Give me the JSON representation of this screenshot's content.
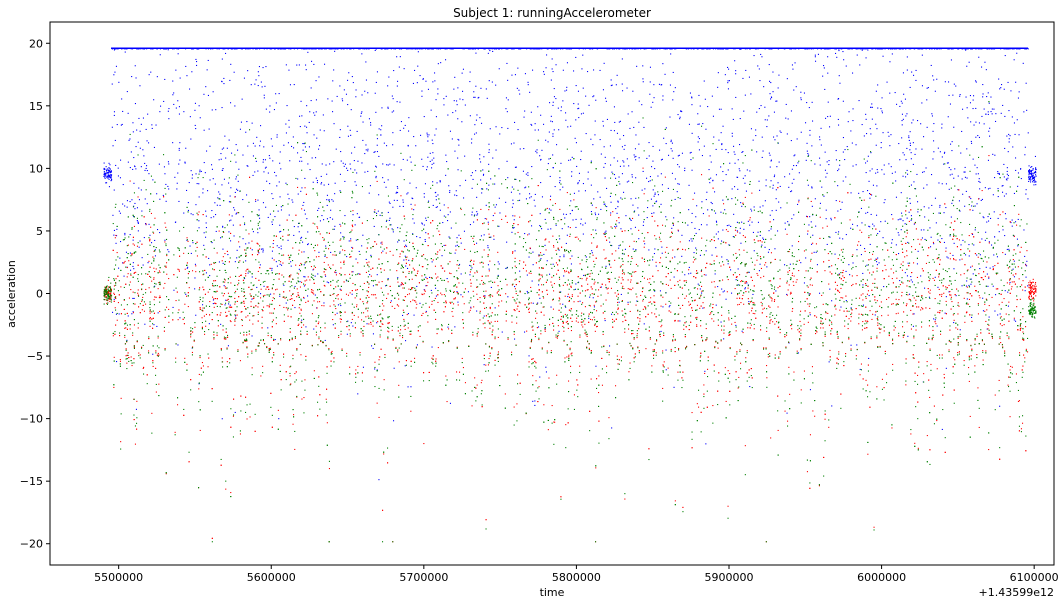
{
  "chart_data": {
    "type": "scatter",
    "title": "Subject 1: runningAccelerometer",
    "xlabel": "time",
    "ylabel": "acceleration",
    "x_offset_label": "+1.43599e12",
    "xlim": [
      5455000,
      6113000
    ],
    "ylim": [
      -21.7,
      21.7
    ],
    "x_ticks": [
      5500000,
      5600000,
      5700000,
      5800000,
      5900000,
      6000000,
      6100000
    ],
    "x_tick_labels": [
      "5500000",
      "5600000",
      "5700000",
      "5800000",
      "5900000",
      "6000000",
      "6100000"
    ],
    "y_ticks": [
      -20,
      -15,
      -10,
      -5,
      0,
      5,
      10,
      15,
      20
    ],
    "y_tick_labels": [
      "−20",
      "−15",
      "−10",
      "−5",
      "0",
      "5",
      "10",
      "15",
      "20"
    ],
    "grid": false,
    "legend": "none",
    "series": [
      {
        "color": "#0000ff",
        "center": 9.6,
        "spread": 6.5,
        "cap": 19.6,
        "pre_segment": {
          "x": [
            5490000,
            5495000
          ],
          "y": 9.6
        },
        "post_segment": {
          "x": [
            6096000,
            6101000
          ],
          "y": 9.5
        }
      },
      {
        "color": "#ff0000",
        "center": -0.5,
        "spread": 3.5,
        "pre_segment": {
          "x": [
            5490000,
            5495000
          ],
          "y": 0.0
        },
        "post_segment": {
          "x": [
            6096000,
            6101000
          ],
          "y": 0.3
        }
      },
      {
        "color": "#008000",
        "center": 0.5,
        "spread": 4.5,
        "pre_segment": {
          "x": [
            5490000,
            5495000
          ],
          "y": 0.0
        },
        "post_segment": {
          "x": [
            6096000,
            6101000
          ],
          "y": -1.3
        }
      }
    ],
    "active_range": [
      5495000,
      6096000
    ]
  }
}
